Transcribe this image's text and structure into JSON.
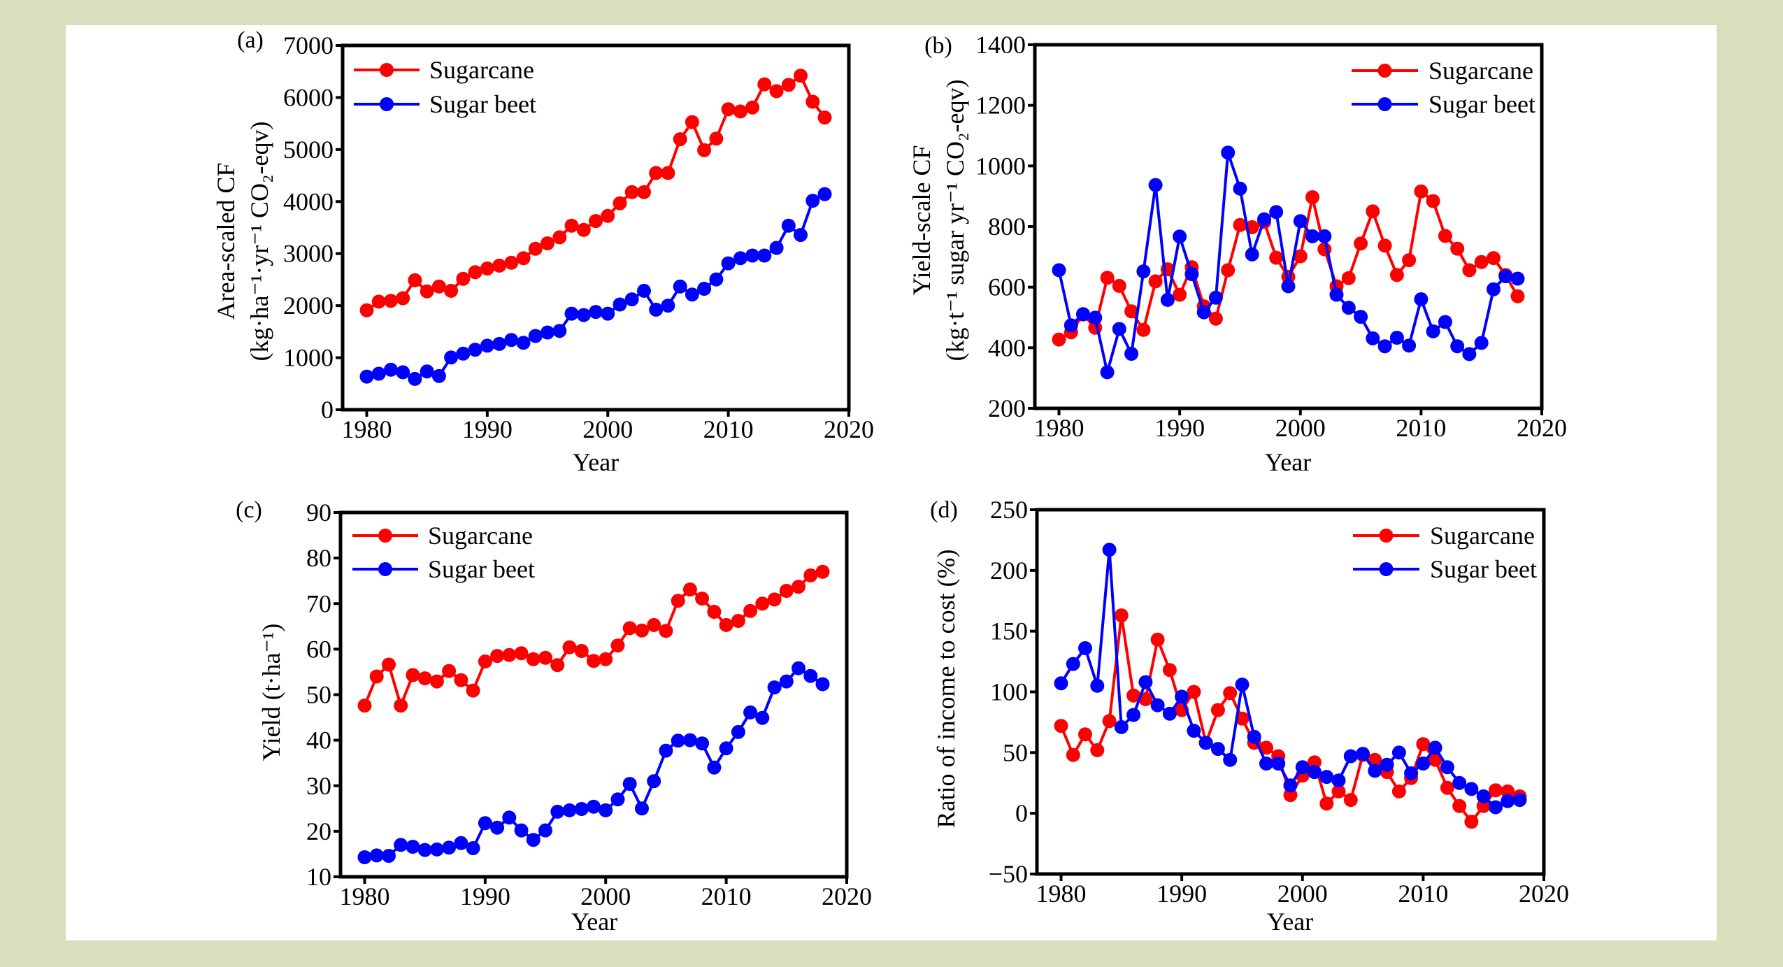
{
  "figure": {
    "background_color": "#D9DEBC",
    "card_color": "#FFFFFF",
    "series_colors": {
      "Sugarcane": "#FF0000",
      "Sugar beet": "#0000FF"
    }
  },
  "chart_data": [
    {
      "id": "a",
      "type": "line",
      "panel_label": "(a)",
      "title": "",
      "xlabel": "Year",
      "ylabel_lines": [
        "Area-scaled CF",
        "(kg·ha⁻¹·yr⁻¹ CO₂-eqv)"
      ],
      "xlim": [
        1978,
        2020
      ],
      "ylim": [
        0,
        7000
      ],
      "xticks": [
        1980,
        1990,
        2000,
        2010,
        2020
      ],
      "yticks": [
        0,
        1000,
        2000,
        3000,
        4000,
        5000,
        6000,
        7000
      ],
      "legend": {
        "position": "top-left",
        "entries": [
          "Sugarcane",
          "Sugar beet"
        ]
      },
      "grid": false,
      "x": [
        1980,
        1981,
        1982,
        1983,
        1984,
        1985,
        1986,
        1987,
        1988,
        1989,
        1990,
        1991,
        1992,
        1993,
        1994,
        1995,
        1996,
        1997,
        1998,
        1999,
        2000,
        2001,
        2002,
        2003,
        2004,
        2005,
        2006,
        2007,
        2008,
        2009,
        2010,
        2011,
        2012,
        2013,
        2014,
        2015,
        2016,
        2017,
        2018
      ],
      "series": [
        {
          "name": "Sugarcane",
          "color": "#FF0000",
          "values": [
            1912,
            2077,
            2093,
            2143,
            2489,
            2275,
            2368,
            2286,
            2516,
            2643,
            2714,
            2769,
            2824,
            2912,
            3093,
            3198,
            3313,
            3538,
            3456,
            3626,
            3725,
            3967,
            4181,
            4181,
            4549,
            4549,
            5198,
            5527,
            4989,
            5209,
            5775,
            5731,
            5808,
            6253,
            6121,
            6242,
            6418,
            5918,
            5615
          ]
        },
        {
          "name": "Sugar beet",
          "color": "#0000FF",
          "values": [
            637,
            692,
            769,
            720,
            593,
            736,
            648,
            1005,
            1077,
            1154,
            1231,
            1264,
            1341,
            1286,
            1418,
            1484,
            1516,
            1846,
            1819,
            1879,
            1846,
            2022,
            2121,
            2286,
            1923,
            2000,
            2368,
            2214,
            2324,
            2505,
            2813,
            2912,
            2962,
            2962,
            3110,
            3538,
            3357,
            4016,
            4143
          ]
        }
      ]
    },
    {
      "id": "b",
      "type": "line",
      "panel_label": "(b)",
      "title": "",
      "xlabel": "Year",
      "ylabel_lines": [
        "Yield-scale CF",
        "(kg·t⁻¹ sugar yr⁻¹ CO₂-eqv)"
      ],
      "xlim": [
        1978,
        2020
      ],
      "ylim": [
        200,
        1400
      ],
      "xticks": [
        1980,
        1990,
        2000,
        2010,
        2020
      ],
      "yticks": [
        200,
        400,
        600,
        800,
        1000,
        1200,
        1400
      ],
      "legend": {
        "position": "top-right",
        "entries": [
          "Sugarcane",
          "Sugar beet"
        ]
      },
      "grid": false,
      "x": [
        1980,
        1981,
        1982,
        1983,
        1984,
        1985,
        1986,
        1987,
        1988,
        1989,
        1990,
        1991,
        1992,
        1993,
        1994,
        1995,
        1996,
        1997,
        1998,
        1999,
        2000,
        2001,
        2002,
        2003,
        2004,
        2005,
        2006,
        2007,
        2008,
        2009,
        2010,
        2011,
        2012,
        2013,
        2014,
        2015,
        2016,
        2017,
        2018
      ],
      "series": [
        {
          "name": "Sugarcane",
          "color": "#FF0000",
          "values": [
            427,
            451,
            510,
            466,
            631,
            604,
            520,
            459,
            619,
            659,
            575,
            666,
            537,
            496,
            656,
            805,
            798,
            815,
            697,
            634,
            702,
            897,
            725,
            603,
            630,
            744,
            850,
            737,
            640,
            689,
            916,
            884,
            769,
            727,
            656,
            683,
            696,
            640,
            570
          ]
        },
        {
          "name": "Sugar beet",
          "color": "#0000FF",
          "values": [
            656,
            474,
            511,
            499,
            319,
            462,
            380,
            652,
            937,
            558,
            767,
            643,
            517,
            565,
            1044,
            925,
            708,
            824,
            848,
            603,
            818,
            768,
            768,
            575,
            532,
            502,
            431,
            405,
            433,
            407,
            560,
            454,
            485,
            405,
            379,
            416,
            593,
            636,
            628
          ]
        }
      ]
    },
    {
      "id": "c",
      "type": "line",
      "panel_label": "(c)",
      "title": "",
      "xlabel": "Year",
      "ylabel_lines": [
        "Yield (t·ha⁻¹)"
      ],
      "xlim": [
        1978,
        2020
      ],
      "ylim": [
        10,
        90
      ],
      "xticks": [
        1980,
        1990,
        2000,
        2010,
        2020
      ],
      "yticks": [
        10,
        20,
        30,
        40,
        50,
        60,
        70,
        80,
        90
      ],
      "legend": {
        "position": "top-left",
        "entries": [
          "Sugarcane",
          "Sugar beet"
        ]
      },
      "grid": false,
      "x": [
        1980,
        1981,
        1982,
        1983,
        1984,
        1985,
        1986,
        1987,
        1988,
        1989,
        1990,
        1991,
        1992,
        1993,
        1994,
        1995,
        1996,
        1997,
        1998,
        1999,
        2000,
        2001,
        2002,
        2003,
        2004,
        2005,
        2006,
        2007,
        2008,
        2009,
        2010,
        2011,
        2012,
        2013,
        2014,
        2015,
        2016,
        2017,
        2018
      ],
      "series": [
        {
          "name": "Sugarcane",
          "color": "#FF0000",
          "values": [
            47.6,
            54.0,
            56.6,
            47.6,
            54.3,
            53.6,
            52.9,
            55.2,
            53.2,
            50.9,
            57.3,
            58.5,
            58.7,
            59.1,
            57.8,
            58.1,
            56.5,
            60.4,
            59.6,
            57.4,
            57.8,
            60.8,
            64.6,
            64.1,
            65.3,
            64.0,
            70.6,
            73.1,
            71.1,
            68.2,
            65.3,
            66.2,
            68.4,
            70.0,
            70.9,
            72.8,
            73.7,
            76.2,
            77.0
          ]
        },
        {
          "name": "Sugar beet",
          "color": "#0000FF",
          "values": [
            14.3,
            14.7,
            14.6,
            17.0,
            16.6,
            15.9,
            16.0,
            16.4,
            17.4,
            16.3,
            21.8,
            20.8,
            23.0,
            20.2,
            18.1,
            20.2,
            24.3,
            24.6,
            24.9,
            25.4,
            24.6,
            27.0,
            30.4,
            25.0,
            31.0,
            37.7,
            39.9,
            40.0,
            39.3,
            34.0,
            38.2,
            41.8,
            46.1,
            44.9,
            51.6,
            52.9,
            55.8,
            54.1,
            52.3
          ]
        }
      ]
    },
    {
      "id": "d",
      "type": "line",
      "panel_label": "(d)",
      "title": "",
      "xlabel": "Year",
      "ylabel_lines": [
        "Ratio of income to cost (%)"
      ],
      "xlim": [
        1978,
        2020
      ],
      "ylim": [
        -50,
        250
      ],
      "xticks": [
        1980,
        1990,
        2000,
        2010,
        2020
      ],
      "yticks": [
        -50,
        0,
        50,
        100,
        150,
        200,
        250
      ],
      "ytick_labels": [
        "−50",
        "0",
        "50",
        "100",
        "150",
        "200",
        "250"
      ],
      "legend": {
        "position": "top-right",
        "entries": [
          "Sugarcane",
          "Sugar beet"
        ]
      },
      "grid": false,
      "x": [
        1980,
        1981,
        1982,
        1983,
        1984,
        1985,
        1986,
        1987,
        1988,
        1989,
        1990,
        1991,
        1992,
        1993,
        1994,
        1995,
        1996,
        1997,
        1998,
        1999,
        2000,
        2001,
        2002,
        2003,
        2004,
        2005,
        2006,
        2007,
        2008,
        2009,
        2010,
        2011,
        2012,
        2013,
        2014,
        2015,
        2016,
        2017,
        2018
      ],
      "series": [
        {
          "name": "Sugarcane",
          "color": "#FF0000",
          "values": [
            72,
            48,
            65,
            52,
            76,
            163,
            97,
            94,
            143,
            118,
            85,
            100,
            58,
            85,
            99,
            78,
            58,
            54,
            47,
            15,
            31,
            42,
            8,
            18,
            11,
            48,
            44,
            34,
            18,
            29,
            57,
            44,
            21,
            6,
            -7,
            6,
            19,
            18,
            14
          ]
        },
        {
          "name": "Sugar beet",
          "color": "#0000FF",
          "values": [
            107,
            123,
            136,
            105,
            217,
            71,
            81,
            108,
            89,
            82,
            96,
            68,
            58,
            53,
            44,
            106,
            63,
            41,
            41,
            23,
            38,
            34,
            30,
            27,
            47,
            49,
            35,
            40,
            50,
            33,
            41,
            54,
            38,
            25,
            20,
            14,
            5,
            10,
            11
          ]
        }
      ]
    }
  ]
}
